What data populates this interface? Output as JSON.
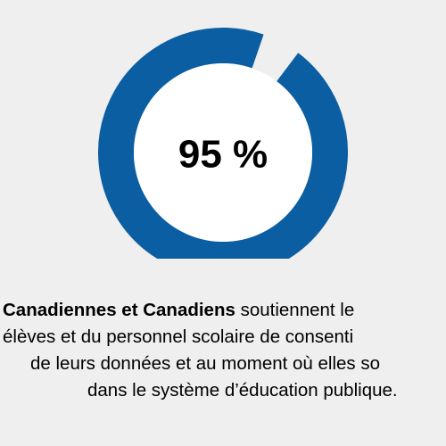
{
  "chart_data": {
    "type": "pie",
    "variant": "donut",
    "values": [
      95
    ],
    "max": 100,
    "center_label": "95 %"
  },
  "colors": {
    "background": "#efefef",
    "ring": "#0b5ea2",
    "center": "#ffffff",
    "text": "#000000"
  },
  "caption": {
    "line1_bold": "Canadiennes et Canadiens",
    "line1_rest": " soutiennent le",
    "line2": "élèves et du personnel scolaire de consenti",
    "line3": "de leurs données et au moment où elles so",
    "line4": "dans le système d’éducation publique."
  }
}
